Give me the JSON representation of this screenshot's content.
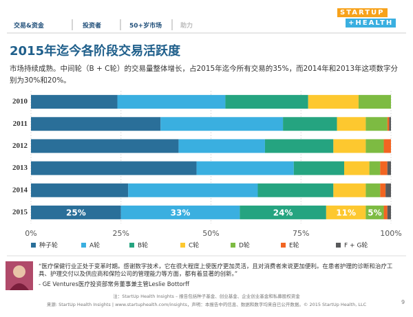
{
  "nav": {
    "tabs": [
      "交易&资金",
      "投资者",
      "50+岁市场",
      "助力"
    ]
  },
  "logo": {
    "line1": "STARTUP",
    "line2": "+HEALTH"
  },
  "chart_data": {
    "type": "stacked-bar-horizontal",
    "title": "2015年迄今各阶段交易活跃度",
    "subtitle": "市场持续成熟。中间轮（B + C轮）的交易量整体增长，占2015年迄今所有交易的35%，而2014年和2013年这项数字分别为30%和20%。",
    "categories": [
      "2010",
      "2011",
      "2012",
      "2013",
      "2014",
      "2015"
    ],
    "series": [
      {
        "name": "种子轮",
        "color": "#2a6f99",
        "values": [
          24,
          36,
          41,
          46,
          27,
          25
        ],
        "value_labels": [
          null,
          null,
          null,
          null,
          null,
          "25%"
        ]
      },
      {
        "name": "A轮",
        "color": "#3aafe0",
        "values": [
          30,
          34,
          24,
          27,
          36,
          33
        ],
        "value_labels": [
          null,
          null,
          null,
          null,
          null,
          "33%"
        ]
      },
      {
        "name": "B轮",
        "color": "#25a480",
        "values": [
          23,
          15,
          19,
          14,
          21,
          24
        ],
        "value_labels": [
          null,
          null,
          null,
          null,
          null,
          "24%"
        ]
      },
      {
        "name": "C轮",
        "color": "#fdc82f",
        "values": [
          14,
          8,
          9,
          7,
          9,
          11
        ],
        "value_labels": [
          null,
          null,
          null,
          null,
          null,
          "11%"
        ]
      },
      {
        "name": "D轮",
        "color": "#7dbb42",
        "values": [
          9,
          6,
          5,
          3,
          4,
          5
        ],
        "value_labels": [
          null,
          null,
          null,
          null,
          null,
          "5%"
        ]
      },
      {
        "name": "E轮",
        "color": "#f26522",
        "values": [
          0,
          0.5,
          2,
          2,
          1.5,
          1
        ]
      },
      {
        "name": "F + G轮",
        "color": "#58595b",
        "values": [
          0,
          0.5,
          0,
          1,
          1.5,
          1
        ]
      }
    ],
    "xlim": [
      0,
      100
    ],
    "xticks": [
      {
        "value": 0,
        "label": "0%"
      },
      {
        "value": 25,
        "label": "25%"
      },
      {
        "value": 50,
        "label": "50%"
      },
      {
        "value": 75,
        "label": "75%"
      },
      {
        "value": 100,
        "label": "100%"
      }
    ],
    "grid": true
  },
  "quote": {
    "text": "“医疗保健行业正处于变革时期。感谢数字技术，它在很大程度上使医疗更加灵活，且对消费者来说更加便利。在患者护理的诊断和治疗工具、护理交付以及供应商和保险公司的管理能力等方面，都有着显著的创新。”",
    "author": "- GE Ventures医疗投资部常务董事兼主管Leslie Bottorff"
  },
  "footer": {
    "note": "注：StartUp Health Insights – 报告包括种子基金、创业基金、企业创业基金和私募股权资金",
    "source": "来源: StartUp Health Insights | www.startuphealth.com/insights，声明：本报告中的信息、数据和数字均来自已公开数据。© 2015 StartUp Health, LLC",
    "page": "9"
  }
}
